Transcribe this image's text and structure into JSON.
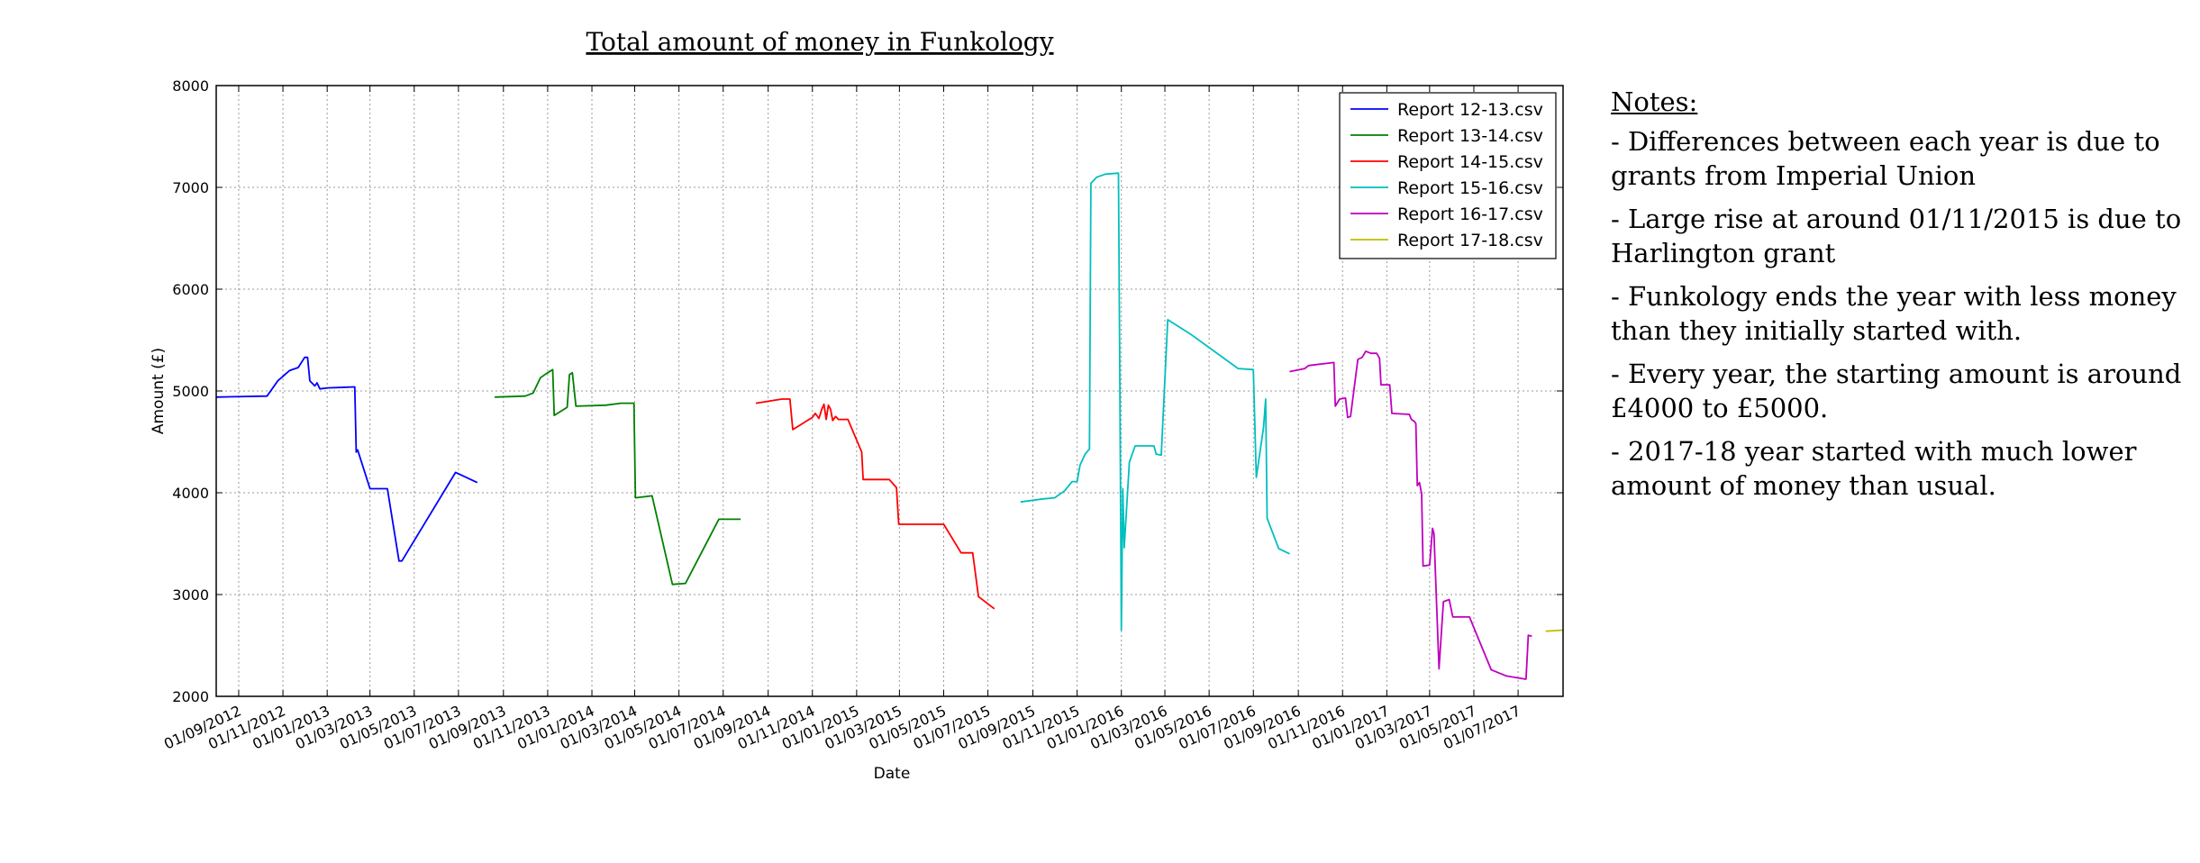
{
  "notes": {
    "heading": "Notes:",
    "items": [
      "- Differences between each year is due to grants from Imperial Union",
      "- Large rise at around 01/11/2015 is due to Harlington grant",
      "- Funkology ends the year with less money than they initially started with.",
      "- Every year, the starting amount is around £4000 to £5000.",
      "- 2017-18 year started with much lower amount of money than usual."
    ]
  },
  "chart_data": {
    "type": "line",
    "title": "Total amount of money in Funkology",
    "xlabel": "Date",
    "ylabel": "Amount (£)",
    "ylim": [
      2000,
      8000
    ],
    "xlim": [
      "2012-08-01",
      "2017-09-01"
    ],
    "grid": true,
    "legend_position": "top-right",
    "y_ticks": [
      2000,
      3000,
      4000,
      5000,
      6000,
      7000,
      8000
    ],
    "x_ticks": [
      {
        "date": "2012-09-01",
        "label": "01/09/2012"
      },
      {
        "date": "2012-11-01",
        "label": "01/11/2012"
      },
      {
        "date": "2013-01-01",
        "label": "01/01/2013"
      },
      {
        "date": "2013-03-01",
        "label": "01/03/2013"
      },
      {
        "date": "2013-05-01",
        "label": "01/05/2013"
      },
      {
        "date": "2013-07-01",
        "label": "01/07/2013"
      },
      {
        "date": "2013-09-01",
        "label": "01/09/2013"
      },
      {
        "date": "2013-11-01",
        "label": "01/11/2013"
      },
      {
        "date": "2014-01-01",
        "label": "01/01/2014"
      },
      {
        "date": "2014-03-01",
        "label": "01/03/2014"
      },
      {
        "date": "2014-05-01",
        "label": "01/05/2014"
      },
      {
        "date": "2014-07-01",
        "label": "01/07/2014"
      },
      {
        "date": "2014-09-01",
        "label": "01/09/2014"
      },
      {
        "date": "2014-11-01",
        "label": "01/11/2014"
      },
      {
        "date": "2015-01-01",
        "label": "01/01/2015"
      },
      {
        "date": "2015-03-01",
        "label": "01/03/2015"
      },
      {
        "date": "2015-05-01",
        "label": "01/05/2015"
      },
      {
        "date": "2015-07-01",
        "label": "01/07/2015"
      },
      {
        "date": "2015-09-01",
        "label": "01/09/2015"
      },
      {
        "date": "2015-11-01",
        "label": "01/11/2015"
      },
      {
        "date": "2016-01-01",
        "label": "01/01/2016"
      },
      {
        "date": "2016-03-01",
        "label": "01/03/2016"
      },
      {
        "date": "2016-05-01",
        "label": "01/05/2016"
      },
      {
        "date": "2016-07-01",
        "label": "01/07/2016"
      },
      {
        "date": "2016-09-01",
        "label": "01/09/2016"
      },
      {
        "date": "2016-11-01",
        "label": "01/11/2016"
      },
      {
        "date": "2017-01-01",
        "label": "01/01/2017"
      },
      {
        "date": "2017-03-01",
        "label": "01/03/2017"
      },
      {
        "date": "2017-05-01",
        "label": "01/05/2017"
      },
      {
        "date": "2017-07-01",
        "label": "01/07/2017"
      }
    ],
    "series": [
      {
        "name": "Report 12-13.csv",
        "color": "#0000ff",
        "points": [
          [
            "2012-08-01",
            4940
          ],
          [
            "2012-10-10",
            4950
          ],
          [
            "2012-10-25",
            5100
          ],
          [
            "2012-11-10",
            5200
          ],
          [
            "2012-11-22",
            5230
          ],
          [
            "2012-12-01",
            5330
          ],
          [
            "2012-12-05",
            5330
          ],
          [
            "2012-12-08",
            5100
          ],
          [
            "2012-12-15",
            5050
          ],
          [
            "2012-12-18",
            5080
          ],
          [
            "2012-12-22",
            5020
          ],
          [
            "2013-01-01",
            5030
          ],
          [
            "2013-02-08",
            5040
          ],
          [
            "2013-02-10",
            4400
          ],
          [
            "2013-02-12",
            4420
          ],
          [
            "2013-03-01",
            4040
          ],
          [
            "2013-03-25",
            4040
          ],
          [
            "2013-04-10",
            3330
          ],
          [
            "2013-04-14",
            3330
          ],
          [
            "2013-06-27",
            4200
          ],
          [
            "2013-07-27",
            4100
          ]
        ]
      },
      {
        "name": "Report 13-14.csv",
        "color": "#008000",
        "points": [
          [
            "2013-08-20",
            4940
          ],
          [
            "2013-10-01",
            4950
          ],
          [
            "2013-10-12",
            4980
          ],
          [
            "2013-10-22",
            5130
          ],
          [
            "2013-10-30",
            5170
          ],
          [
            "2013-11-08",
            5210
          ],
          [
            "2013-11-10",
            4760
          ],
          [
            "2013-11-28",
            4840
          ],
          [
            "2013-12-01",
            5160
          ],
          [
            "2013-12-05",
            5180
          ],
          [
            "2013-12-10",
            4850
          ],
          [
            "2014-01-20",
            4860
          ],
          [
            "2014-02-10",
            4880
          ],
          [
            "2014-02-28",
            4880
          ],
          [
            "2014-03-02",
            3950
          ],
          [
            "2014-03-25",
            3970
          ],
          [
            "2014-04-22",
            3100
          ],
          [
            "2014-05-10",
            3110
          ],
          [
            "2014-06-25",
            3740
          ],
          [
            "2014-07-25",
            3740
          ]
        ]
      },
      {
        "name": "Report 14-15.csv",
        "color": "#ff0000",
        "points": [
          [
            "2014-08-15",
            4880
          ],
          [
            "2014-09-20",
            4920
          ],
          [
            "2014-10-01",
            4920
          ],
          [
            "2014-10-05",
            4620
          ],
          [
            "2014-10-25",
            4710
          ],
          [
            "2014-11-01",
            4740
          ],
          [
            "2014-11-05",
            4780
          ],
          [
            "2014-11-10",
            4730
          ],
          [
            "2014-11-14",
            4820
          ],
          [
            "2014-11-17",
            4870
          ],
          [
            "2014-11-20",
            4720
          ],
          [
            "2014-11-23",
            4860
          ],
          [
            "2014-11-26",
            4820
          ],
          [
            "2014-11-29",
            4710
          ],
          [
            "2014-12-03",
            4750
          ],
          [
            "2014-12-07",
            4720
          ],
          [
            "2014-12-20",
            4720
          ],
          [
            "2015-01-08",
            4400
          ],
          [
            "2015-01-10",
            4130
          ],
          [
            "2015-02-15",
            4130
          ],
          [
            "2015-02-25",
            4050
          ],
          [
            "2015-02-28",
            3690
          ],
          [
            "2015-05-01",
            3690
          ],
          [
            "2015-05-25",
            3410
          ],
          [
            "2015-06-10",
            3410
          ],
          [
            "2015-06-18",
            2980
          ],
          [
            "2015-07-10",
            2860
          ]
        ]
      },
      {
        "name": "Report 15-16.csv",
        "color": "#00bfbf",
        "points": [
          [
            "2015-08-15",
            3910
          ],
          [
            "2015-09-15",
            3940
          ],
          [
            "2015-10-01",
            3950
          ],
          [
            "2015-10-15",
            4020
          ],
          [
            "2015-10-25",
            4110
          ],
          [
            "2015-11-01",
            4110
          ],
          [
            "2015-11-05",
            4270
          ],
          [
            "2015-11-12",
            4380
          ],
          [
            "2015-11-18",
            4430
          ],
          [
            "2015-11-20",
            7040
          ],
          [
            "2015-11-28",
            7100
          ],
          [
            "2015-12-10",
            7130
          ],
          [
            "2015-12-28",
            7140
          ],
          [
            "2015-12-30",
            5000
          ],
          [
            "2016-01-01",
            2650
          ],
          [
            "2016-01-03",
            4040
          ],
          [
            "2016-01-05",
            3460
          ],
          [
            "2016-01-12",
            4300
          ],
          [
            "2016-01-20",
            4460
          ],
          [
            "2016-02-15",
            4460
          ],
          [
            "2016-02-18",
            4380
          ],
          [
            "2016-02-25",
            4370
          ],
          [
            "2016-03-05",
            5700
          ],
          [
            "2016-04-05",
            5560
          ],
          [
            "2016-06-10",
            5220
          ],
          [
            "2016-07-01",
            5210
          ],
          [
            "2016-07-05",
            4150
          ],
          [
            "2016-07-15",
            4640
          ],
          [
            "2016-07-18",
            4920
          ],
          [
            "2016-07-20",
            3750
          ],
          [
            "2016-08-05",
            3450
          ],
          [
            "2016-08-20",
            3400
          ]
        ]
      },
      {
        "name": "Report 16-17.csv",
        "color": "#bf00bf",
        "points": [
          [
            "2016-08-20",
            5190
          ],
          [
            "2016-09-10",
            5220
          ],
          [
            "2016-09-15",
            5250
          ],
          [
            "2016-10-20",
            5280
          ],
          [
            "2016-10-22",
            4850
          ],
          [
            "2016-10-28",
            4920
          ],
          [
            "2016-11-05",
            4930
          ],
          [
            "2016-11-08",
            4740
          ],
          [
            "2016-11-12",
            4750
          ],
          [
            "2016-11-22",
            5310
          ],
          [
            "2016-11-28",
            5330
          ],
          [
            "2016-12-03",
            5390
          ],
          [
            "2016-12-10",
            5370
          ],
          [
            "2016-12-18",
            5370
          ],
          [
            "2016-12-22",
            5320
          ],
          [
            "2016-12-24",
            5060
          ],
          [
            "2017-01-05",
            5060
          ],
          [
            "2017-01-08",
            4780
          ],
          [
            "2017-02-01",
            4770
          ],
          [
            "2017-02-04",
            4720
          ],
          [
            "2017-02-08",
            4700
          ],
          [
            "2017-02-10",
            4680
          ],
          [
            "2017-02-12",
            4070
          ],
          [
            "2017-02-15",
            4100
          ],
          [
            "2017-02-18",
            3990
          ],
          [
            "2017-02-20",
            3280
          ],
          [
            "2017-03-01",
            3290
          ],
          [
            "2017-03-05",
            3650
          ],
          [
            "2017-03-07",
            3600
          ],
          [
            "2017-03-14",
            2270
          ],
          [
            "2017-03-20",
            2930
          ],
          [
            "2017-03-28",
            2950
          ],
          [
            "2017-04-02",
            2780
          ],
          [
            "2017-04-25",
            2780
          ],
          [
            "2017-05-25",
            2260
          ],
          [
            "2017-06-15",
            2200
          ],
          [
            "2017-07-10",
            2170
          ],
          [
            "2017-07-12",
            2170
          ],
          [
            "2017-07-15",
            2600
          ],
          [
            "2017-07-20",
            2590
          ]
        ]
      },
      {
        "name": "Report 17-18.csv",
        "color": "#bfbf00",
        "points": [
          [
            "2017-08-08",
            2640
          ],
          [
            "2017-09-01",
            2650
          ]
        ]
      }
    ]
  }
}
